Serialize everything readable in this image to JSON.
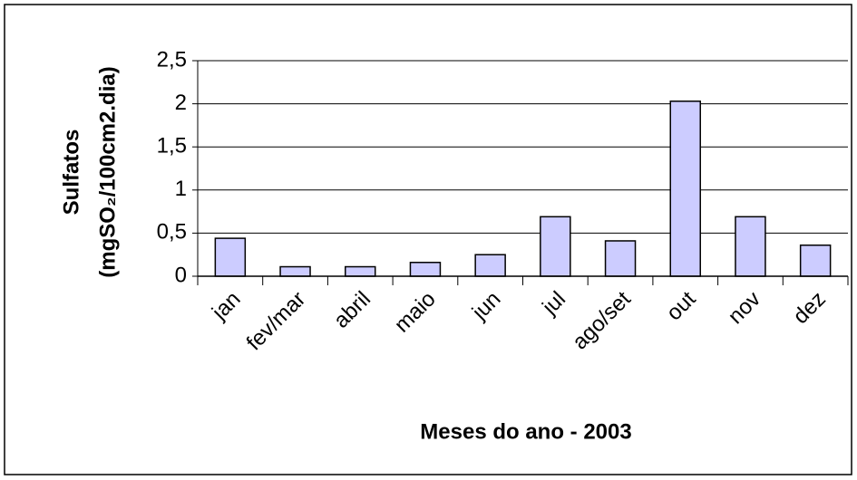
{
  "chart_data": {
    "type": "bar",
    "ylabel": [
      "Sulfatos",
      "(mgSO₂/100cm2.dia)"
    ],
    "xlabel": "Meses do ano - 2003",
    "categories": [
      "jan",
      "fev/mar",
      "abril",
      "maio",
      "jun",
      "jul",
      "ago/set",
      "out",
      "nov",
      "dez"
    ],
    "values": [
      0.44,
      0.11,
      0.11,
      0.16,
      0.25,
      0.69,
      0.41,
      2.03,
      0.69,
      0.36
    ],
    "color": "#ccccff",
    "ylim": [
      0,
      2.5
    ],
    "yticks": [
      0,
      {
        "value": 0.5,
        "label": "0,5"
      },
      1,
      {
        "value": 1.5,
        "label": "1,5"
      },
      2,
      {
        "value": 2.5,
        "label": "2,5"
      }
    ],
    "grid": true
  }
}
